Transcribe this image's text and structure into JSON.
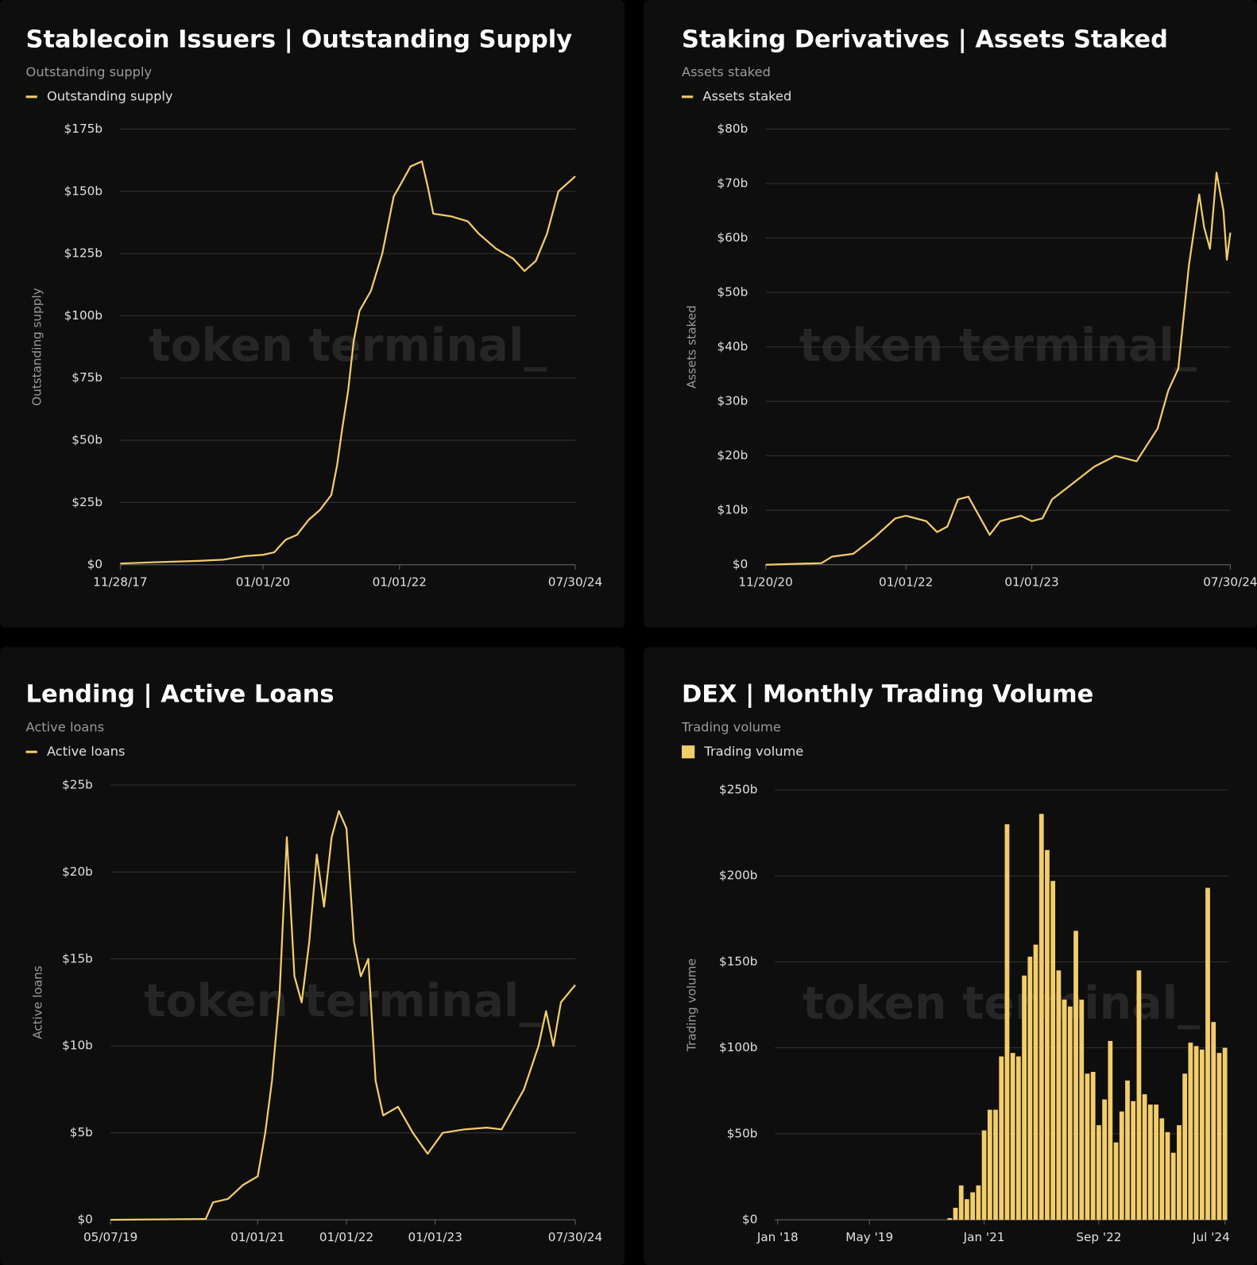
{
  "chart_data": [
    {
      "type": "line",
      "title": "Stablecoin Issuers | Outstanding Supply",
      "subtitle": "Outstanding supply",
      "ylabel": "Outstanding supply",
      "watermark": "token terminal_",
      "x": [
        "2017-11-28",
        "2018-06-01",
        "2019-01-01",
        "2019-06-01",
        "2019-10-01",
        "2020-01-01",
        "2020-03-01",
        "2020-05-01",
        "2020-07-01",
        "2020-09-01",
        "2020-11-01",
        "2021-01-01",
        "2021-02-01",
        "2021-03-01",
        "2021-04-01",
        "2021-05-01",
        "2021-06-01",
        "2021-08-01",
        "2021-10-01",
        "2021-12-01",
        "2022-01-01",
        "2022-03-01",
        "2022-05-01",
        "2022-06-01",
        "2022-07-01",
        "2022-10-01",
        "2023-01-01",
        "2023-03-01",
        "2023-06-01",
        "2023-09-01",
        "2023-11-01",
        "2024-01-01",
        "2024-03-01",
        "2024-05-01",
        "2024-07-30"
      ],
      "series": [
        {
          "name": "Outstanding supply",
          "color": "#f3cd6b",
          "values": [
            0.5,
            1,
            1.5,
            2,
            3.5,
            4,
            5,
            10,
            12,
            18,
            22,
            28,
            40,
            55,
            70,
            90,
            102,
            110,
            125,
            148,
            152,
            160,
            162,
            152,
            141,
            140,
            138,
            133,
            127,
            123,
            118,
            122,
            133,
            150,
            156
          ]
        }
      ],
      "xlim": [
        "2017-11-28",
        "2024-07-30"
      ],
      "xticks": [
        {
          "value": "2017-11-28",
          "label": "11/28/17"
        },
        {
          "value": "2020-01-01",
          "label": "01/01/20"
        },
        {
          "value": "2022-01-01",
          "label": "01/01/22"
        },
        {
          "value": "2024-07-30",
          "label": "07/30/24"
        }
      ],
      "ylim": [
        0,
        175
      ],
      "yticks": [
        {
          "value": 0,
          "label": "$0"
        },
        {
          "value": 25,
          "label": "$25b"
        },
        {
          "value": 50,
          "label": "$50b"
        },
        {
          "value": 75,
          "label": "$75b"
        },
        {
          "value": 100,
          "label": "$100b"
        },
        {
          "value": 125,
          "label": "$125b"
        },
        {
          "value": 150,
          "label": "$150b"
        },
        {
          "value": 175,
          "label": "$175b"
        }
      ],
      "grid": true
    },
    {
      "type": "line",
      "title": "Staking Derivatives | Assets Staked",
      "subtitle": "Assets staked",
      "ylabel": "Assets staked",
      "watermark": "token terminal_",
      "x": [
        "2020-11-20",
        "2021-05-01",
        "2021-06-01",
        "2021-08-01",
        "2021-10-01",
        "2021-12-01",
        "2022-01-01",
        "2022-03-01",
        "2022-04-01",
        "2022-05-01",
        "2022-06-01",
        "2022-07-01",
        "2022-08-01",
        "2022-09-01",
        "2022-10-01",
        "2022-12-01",
        "2023-01-01",
        "2023-02-01",
        "2023-03-01",
        "2023-05-01",
        "2023-07-01",
        "2023-09-01",
        "2023-11-01",
        "2024-01-01",
        "2024-02-01",
        "2024-03-01",
        "2024-04-01",
        "2024-05-01",
        "2024-05-15",
        "2024-06-01",
        "2024-06-20",
        "2024-07-10",
        "2024-07-20",
        "2024-07-30"
      ],
      "series": [
        {
          "name": "Assets staked",
          "color": "#f3cd6b",
          "values": [
            0,
            0.3,
            1.5,
            2,
            5,
            8.5,
            9,
            8,
            6,
            7,
            12,
            12.5,
            9,
            5.5,
            8,
            9,
            8,
            8.5,
            12,
            15,
            18,
            20,
            19,
            25,
            32,
            36,
            55,
            68,
            62,
            58,
            72,
            65,
            56,
            61
          ]
        }
      ],
      "xlim": [
        "2020-11-20",
        "2024-07-30"
      ],
      "xticks": [
        {
          "value": "2020-11-20",
          "label": "11/20/20"
        },
        {
          "value": "2022-01-01",
          "label": "01/01/22"
        },
        {
          "value": "2023-01-01",
          "label": "01/01/23"
        },
        {
          "value": "2024-07-30",
          "label": "07/30/24"
        }
      ],
      "ylim": [
        0,
        80
      ],
      "yticks": [
        {
          "value": 0,
          "label": "$0"
        },
        {
          "value": 10,
          "label": "$10b"
        },
        {
          "value": 20,
          "label": "$20b"
        },
        {
          "value": 30,
          "label": "$30b"
        },
        {
          "value": 40,
          "label": "$40b"
        },
        {
          "value": 50,
          "label": "$50b"
        },
        {
          "value": 60,
          "label": "$60b"
        },
        {
          "value": 70,
          "label": "$70b"
        },
        {
          "value": 80,
          "label": "$80b"
        }
      ],
      "grid": true
    },
    {
      "type": "line",
      "title": "Lending | Active Loans",
      "subtitle": "Active loans",
      "ylabel": "Active loans",
      "watermark": "token terminal_",
      "x": [
        "2019-05-07",
        "2020-06-01",
        "2020-07-01",
        "2020-09-01",
        "2020-11-01",
        "2021-01-01",
        "2021-02-01",
        "2021-03-01",
        "2021-04-01",
        "2021-05-01",
        "2021-06-01",
        "2021-07-01",
        "2021-08-01",
        "2021-09-01",
        "2021-10-01",
        "2021-11-01",
        "2021-12-01",
        "2022-01-01",
        "2022-02-01",
        "2022-03-01",
        "2022-04-01",
        "2022-05-01",
        "2022-06-01",
        "2022-08-01",
        "2022-10-01",
        "2022-12-01",
        "2023-02-01",
        "2023-05-01",
        "2023-08-01",
        "2023-10-01",
        "2024-01-01",
        "2024-03-01",
        "2024-04-01",
        "2024-05-01",
        "2024-06-01",
        "2024-07-30"
      ],
      "series": [
        {
          "name": "Active loans",
          "color": "#f3cd6b",
          "values": [
            0,
            0.05,
            1,
            1.2,
            2,
            2.5,
            5,
            8,
            13,
            22,
            14,
            12.5,
            16,
            21,
            18,
            22,
            23.5,
            22.5,
            16,
            14,
            15,
            8,
            6,
            6.5,
            5,
            3.8,
            5,
            5.2,
            5.3,
            5.2,
            7.5,
            10,
            12,
            10,
            12.5,
            13.5
          ]
        }
      ],
      "xlim": [
        "2019-05-07",
        "2024-07-30"
      ],
      "xticks": [
        {
          "value": "2019-05-07",
          "label": "05/07/19"
        },
        {
          "value": "2021-01-01",
          "label": "01/01/21"
        },
        {
          "value": "2022-01-01",
          "label": "01/01/22"
        },
        {
          "value": "2023-01-01",
          "label": "01/01/23"
        },
        {
          "value": "2024-07-30",
          "label": "07/30/24"
        }
      ],
      "ylim": [
        0,
        25
      ],
      "yticks": [
        {
          "value": 0,
          "label": "$0"
        },
        {
          "value": 5,
          "label": "$5b"
        },
        {
          "value": 10,
          "label": "$10b"
        },
        {
          "value": 15,
          "label": "$15b"
        },
        {
          "value": 20,
          "label": "$20b"
        },
        {
          "value": 25,
          "label": "$25b"
        }
      ],
      "grid": true
    },
    {
      "type": "bar",
      "title": "DEX | Monthly Trading Volume",
      "subtitle": "Trading volume",
      "ylabel": "Trading volume",
      "watermark": "token terminal_",
      "categories": [
        "Jan '18",
        null,
        null,
        null,
        null,
        null,
        null,
        null,
        null,
        null,
        null,
        null,
        null,
        null,
        null,
        null,
        "May '19",
        null,
        null,
        null,
        null,
        null,
        null,
        null,
        null,
        null,
        null,
        null,
        null,
        null,
        null,
        null,
        null,
        null,
        null,
        null,
        "Jan '21",
        null,
        null,
        null,
        null,
        null,
        null,
        null,
        null,
        null,
        null,
        null,
        null,
        null,
        null,
        null,
        null,
        null,
        null,
        null,
        "Sep '22",
        null,
        null,
        null,
        null,
        null,
        null,
        null,
        null,
        null,
        null,
        null,
        null,
        null,
        null,
        null,
        null,
        null,
        null,
        null,
        null,
        null,
        "Jul '24"
      ],
      "series": [
        {
          "name": "Trading volume",
          "color": "#f3cd6b",
          "values": [
            0,
            0,
            0,
            0,
            0,
            0,
            0,
            0,
            0,
            0,
            0,
            0,
            0,
            0,
            0,
            0,
            0,
            0,
            0,
            0,
            0,
            0,
            0,
            0,
            0,
            0,
            0,
            0,
            0,
            0,
            1,
            7,
            20,
            12,
            16,
            20,
            52,
            64,
            64,
            95,
            230,
            97,
            95,
            142,
            153,
            160,
            236,
            215,
            197,
            145,
            128,
            124,
            168,
            128,
            85,
            86,
            55,
            70,
            104,
            45,
            63,
            81,
            69,
            145,
            73,
            67,
            67,
            59,
            51,
            39,
            55,
            85,
            103,
            101,
            99,
            193,
            115,
            97,
            100
          ]
        }
      ],
      "ylim": [
        0,
        250
      ],
      "yticks": [
        {
          "value": 0,
          "label": "$0"
        },
        {
          "value": 50,
          "label": "$50b"
        },
        {
          "value": 100,
          "label": "$100b"
        },
        {
          "value": 150,
          "label": "$150b"
        },
        {
          "value": 200,
          "label": "$200b"
        },
        {
          "value": 250,
          "label": "$250b"
        }
      ],
      "grid": true
    }
  ]
}
